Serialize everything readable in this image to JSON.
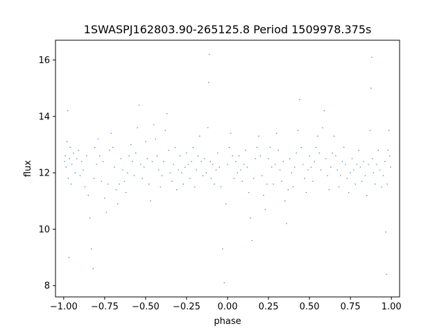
{
  "chart_data": {
    "type": "scatter",
    "title": "1SWASPJ162803.90-265125.8 Period 1509978.375s",
    "xlabel": "phase",
    "ylabel": "flux",
    "xlim": [
      -1.05,
      1.05
    ],
    "ylim": [
      7.6,
      16.7
    ],
    "xticks": [
      -1.0,
      -0.75,
      -0.5,
      -0.25,
      0.0,
      0.25,
      0.5,
      0.75,
      1.0
    ],
    "xtick_labels": [
      "−1.00",
      "−0.75",
      "−0.50",
      "−0.25",
      "0.00",
      "0.25",
      "0.50",
      "0.75",
      "1.00"
    ],
    "yticks": [
      8,
      10,
      12,
      14,
      16
    ],
    "ytick_labels": [
      "8",
      "10",
      "12",
      "14",
      "16"
    ],
    "grid": false,
    "point_color": "#1f77b4",
    "marker_size": 0.7,
    "series": [
      {
        "points": [
          [
            -0.995,
            12.4
          ],
          [
            -0.99,
            12.6
          ],
          [
            -0.985,
            12.2
          ],
          [
            -0.98,
            13.1
          ],
          [
            -0.975,
            14.2
          ],
          [
            -0.972,
            11.8
          ],
          [
            -0.968,
            9.0
          ],
          [
            -0.965,
            12.5
          ],
          [
            -0.96,
            12.9
          ],
          [
            -0.955,
            11.6
          ],
          [
            -0.95,
            12.3
          ],
          [
            -0.94,
            12.7
          ],
          [
            -0.93,
            12.0
          ],
          [
            -0.92,
            12.5
          ],
          [
            -0.91,
            12.8
          ],
          [
            -0.9,
            11.9
          ],
          [
            -0.89,
            12.4
          ],
          [
            -0.88,
            12.1
          ],
          [
            -0.87,
            11.5
          ],
          [
            -0.86,
            12.6
          ],
          [
            -0.85,
            11.2
          ],
          [
            -0.84,
            10.4
          ],
          [
            -0.83,
            9.3
          ],
          [
            -0.82,
            8.6
          ],
          [
            -0.815,
            11.8
          ],
          [
            -0.81,
            12.9
          ],
          [
            -0.8,
            12.3
          ],
          [
            -0.79,
            13.2
          ],
          [
            -0.78,
            12.6
          ],
          [
            -0.77,
            11.7
          ],
          [
            -0.76,
            12.4
          ],
          [
            -0.75,
            11.1
          ],
          [
            -0.74,
            10.6
          ],
          [
            -0.73,
            11.6
          ],
          [
            -0.72,
            12.8
          ],
          [
            -0.71,
            13.4
          ],
          [
            -0.7,
            12.9
          ],
          [
            -0.69,
            12.2
          ],
          [
            -0.68,
            11.4
          ],
          [
            -0.67,
            10.9
          ],
          [
            -0.66,
            11.6
          ],
          [
            -0.65,
            12.5
          ],
          [
            -0.64,
            12.1
          ],
          [
            -0.63,
            11.7
          ],
          [
            -0.62,
            11.3
          ],
          [
            -0.61,
            12.0
          ],
          [
            -0.6,
            12.6
          ],
          [
            -0.59,
            13.0
          ],
          [
            -0.58,
            12.4
          ],
          [
            -0.57,
            11.9
          ],
          [
            -0.56,
            12.7
          ],
          [
            -0.55,
            13.6
          ],
          [
            -0.54,
            14.4
          ],
          [
            -0.53,
            12.3
          ],
          [
            -0.52,
            11.8
          ],
          [
            -0.51,
            12.2
          ],
          [
            -0.5,
            13.1
          ],
          [
            -0.49,
            12.5
          ],
          [
            -0.48,
            11.6
          ],
          [
            -0.47,
            11.0
          ],
          [
            -0.46,
            12.4
          ],
          [
            -0.45,
            13.7
          ],
          [
            -0.44,
            13.2
          ],
          [
            -0.43,
            12.6
          ],
          [
            -0.42,
            12.1
          ],
          [
            -0.41,
            11.5
          ],
          [
            -0.4,
            11.9
          ],
          [
            -0.39,
            12.4
          ],
          [
            -0.38,
            13.5
          ],
          [
            -0.37,
            14.1
          ],
          [
            -0.36,
            12.8
          ],
          [
            -0.35,
            12.0
          ],
          [
            -0.34,
            11.7
          ],
          [
            -0.33,
            12.3
          ],
          [
            -0.32,
            12.9
          ],
          [
            -0.31,
            11.4
          ],
          [
            -0.3,
            12.1
          ],
          [
            -0.29,
            12.6
          ],
          [
            -0.28,
            12.0
          ],
          [
            -0.27,
            11.6
          ],
          [
            -0.26,
            12.2
          ],
          [
            -0.25,
            12.7
          ],
          [
            -0.24,
            12.3
          ],
          [
            -0.23,
            11.8
          ],
          [
            -0.22,
            12.4
          ],
          [
            -0.21,
            12.9
          ],
          [
            -0.2,
            11.5
          ],
          [
            -0.19,
            12.1
          ],
          [
            -0.18,
            12.6
          ],
          [
            -0.17,
            13.3
          ],
          [
            -0.16,
            12.4
          ],
          [
            -0.15,
            11.9
          ],
          [
            -0.14,
            12.5
          ],
          [
            -0.13,
            12.0
          ],
          [
            -0.12,
            13.6
          ],
          [
            -0.115,
            15.2
          ],
          [
            -0.11,
            16.2
          ],
          [
            -0.105,
            12.4
          ],
          [
            -0.1,
            11.8
          ],
          [
            -0.09,
            12.3
          ],
          [
            -0.08,
            11.6
          ],
          [
            -0.07,
            12.1
          ],
          [
            -0.06,
            12.7
          ],
          [
            -0.05,
            12.2
          ],
          [
            -0.04,
            11.5
          ],
          [
            -0.03,
            9.3
          ],
          [
            -0.02,
            8.1
          ],
          [
            -0.01,
            10.9
          ],
          [
            0.0,
            12.3
          ],
          [
            0.01,
            12.9
          ],
          [
            0.02,
            13.4
          ],
          [
            0.03,
            12.6
          ],
          [
            0.04,
            11.8
          ],
          [
            0.05,
            12.4
          ],
          [
            0.06,
            12.0
          ],
          [
            0.07,
            12.6
          ],
          [
            0.08,
            12.1
          ],
          [
            0.09,
            11.7
          ],
          [
            0.1,
            12.3
          ],
          [
            0.11,
            12.8
          ],
          [
            0.12,
            12.2
          ],
          [
            0.13,
            11.3
          ],
          [
            0.14,
            10.4
          ],
          [
            0.15,
            9.6
          ],
          [
            0.16,
            11.8
          ],
          [
            0.17,
            12.5
          ],
          [
            0.18,
            12.9
          ],
          [
            0.19,
            13.3
          ],
          [
            0.2,
            12.6
          ],
          [
            0.21,
            11.9
          ],
          [
            0.22,
            11.2
          ],
          [
            0.23,
            10.7
          ],
          [
            0.24,
            11.6
          ],
          [
            0.25,
            12.5
          ],
          [
            0.26,
            12.9
          ],
          [
            0.27,
            12.2
          ],
          [
            0.28,
            11.6
          ],
          [
            0.29,
            12.3
          ],
          [
            0.3,
            13.4
          ],
          [
            0.31,
            12.8
          ],
          [
            0.32,
            12.1
          ],
          [
            0.33,
            11.7
          ],
          [
            0.34,
            12.4
          ],
          [
            0.35,
            11.0
          ],
          [
            0.36,
            10.2
          ],
          [
            0.37,
            11.4
          ],
          [
            0.38,
            12.5
          ],
          [
            0.39,
            12.0
          ],
          [
            0.4,
            11.5
          ],
          [
            0.41,
            12.2
          ],
          [
            0.42,
            12.7
          ],
          [
            0.43,
            13.5
          ],
          [
            0.44,
            14.6
          ],
          [
            0.45,
            12.9
          ],
          [
            0.46,
            12.3
          ],
          [
            0.47,
            11.8
          ],
          [
            0.48,
            11.3
          ],
          [
            0.49,
            12.1
          ],
          [
            0.5,
            12.6
          ],
          [
            0.51,
            12.2
          ],
          [
            0.52,
            11.7
          ],
          [
            0.53,
            12.4
          ],
          [
            0.54,
            12.9
          ],
          [
            0.55,
            13.3
          ],
          [
            0.56,
            12.7
          ],
          [
            0.57,
            12.1
          ],
          [
            0.58,
            13.6
          ],
          [
            0.59,
            14.2
          ],
          [
            0.6,
            12.5
          ],
          [
            0.61,
            11.9
          ],
          [
            0.62,
            11.4
          ],
          [
            0.63,
            12.2
          ],
          [
            0.64,
            12.7
          ],
          [
            0.65,
            13.3
          ],
          [
            0.66,
            12.6
          ],
          [
            0.67,
            12.1
          ],
          [
            0.68,
            11.5
          ],
          [
            0.69,
            11.9
          ],
          [
            0.7,
            12.4
          ],
          [
            0.71,
            12.9
          ],
          [
            0.72,
            12.3
          ],
          [
            0.73,
            11.8
          ],
          [
            0.74,
            11.3
          ],
          [
            0.75,
            12.0
          ],
          [
            0.76,
            12.5
          ],
          [
            0.77,
            12.1
          ],
          [
            0.78,
            11.6
          ],
          [
            0.79,
            12.3
          ],
          [
            0.8,
            12.8
          ],
          [
            0.81,
            12.2
          ],
          [
            0.82,
            11.7
          ],
          [
            0.83,
            12.4
          ],
          [
            0.84,
            11.9
          ],
          [
            0.85,
            11.2
          ],
          [
            0.86,
            12.3
          ],
          [
            0.87,
            13.5
          ],
          [
            0.875,
            15.0
          ],
          [
            0.88,
            16.1
          ],
          [
            0.885,
            12.5
          ],
          [
            0.89,
            12.0
          ],
          [
            0.9,
            11.6
          ],
          [
            0.91,
            12.3
          ],
          [
            0.92,
            12.8
          ],
          [
            0.93,
            12.1
          ],
          [
            0.94,
            11.5
          ],
          [
            0.95,
            11.9
          ],
          [
            0.96,
            12.4
          ],
          [
            0.965,
            9.9
          ],
          [
            0.97,
            8.4
          ],
          [
            0.975,
            11.6
          ],
          [
            0.98,
            12.8
          ],
          [
            0.985,
            13.5
          ],
          [
            0.99,
            12.6
          ],
          [
            0.995,
            12.2
          ]
        ]
      }
    ]
  }
}
